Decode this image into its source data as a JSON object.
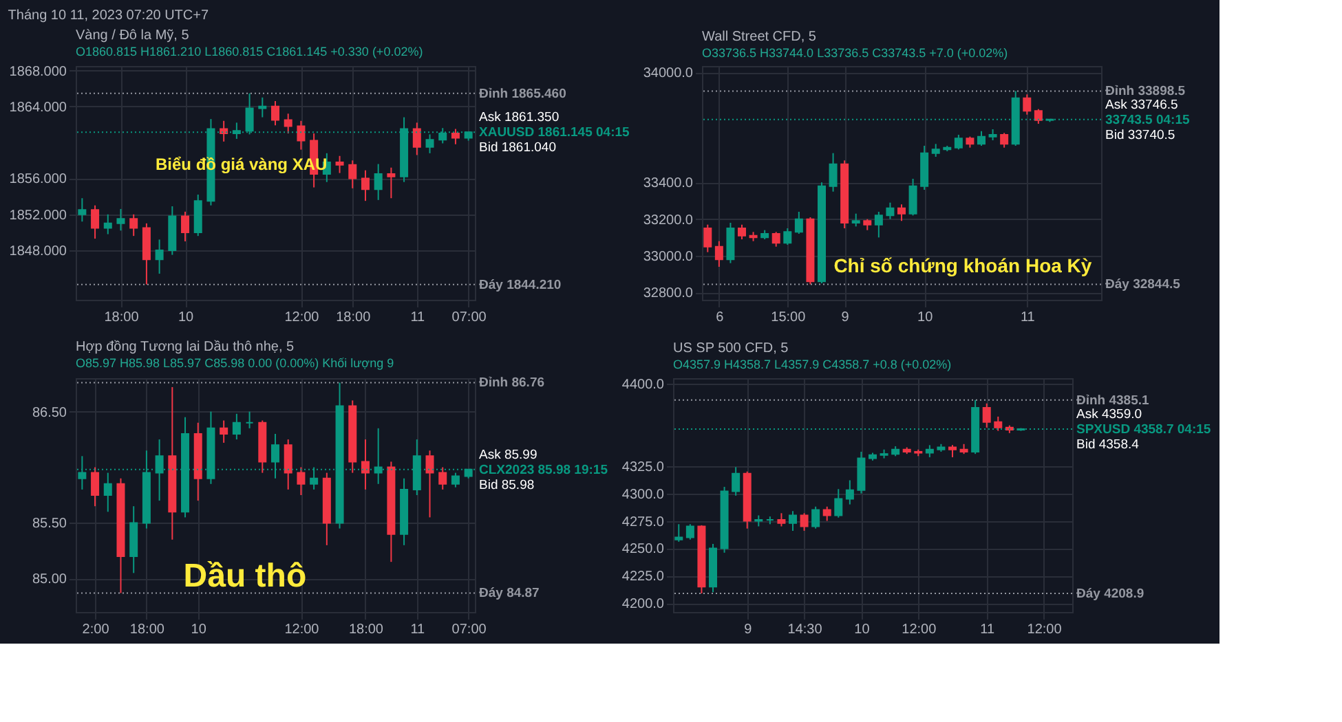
{
  "chart_data": [
    {
      "type": "other",
      "title": "Tháng 10 11, 2023 07:20 UTC+7"
    },
    {
      "type": "candlestick",
      "title": "Vàng / Đô la Mỹ, 5",
      "subtitle": "O1860.815  H1861.210  L1860.815  C1861.145  +0.330 (+0.02%)",
      "categories": [
        null,
        null,
        null,
        "18:00",
        null,
        null,
        null,
        null,
        "10",
        null,
        null,
        null,
        null,
        null,
        null,
        null,
        null,
        "12:00",
        null,
        null,
        null,
        "18:00",
        null,
        null,
        null,
        null,
        "11",
        null,
        null,
        null,
        "07:00"
      ],
      "ohlc": [
        [
          1852.0,
          1853.8,
          1851.2,
          1852.5
        ],
        [
          1852.5,
          1853.0,
          1849.3,
          1850.5
        ],
        [
          1850.5,
          1852.0,
          1849.8,
          1851.0
        ],
        [
          1851.0,
          1852.6,
          1850.2,
          1851.5
        ],
        [
          1851.5,
          1852.0,
          1849.6,
          1850.5
        ],
        [
          1850.5,
          1851.0,
          1844.21,
          1847.0
        ],
        [
          1847.0,
          1849.2,
          1845.4,
          1848.0
        ],
        [
          1848.0,
          1852.9,
          1847.5,
          1851.8
        ],
        [
          1851.8,
          1852.3,
          1849.0,
          1850.0
        ],
        [
          1850.0,
          1854.2,
          1849.6,
          1853.5
        ],
        [
          1853.5,
          1862.6,
          1853.0,
          1861.5
        ],
        [
          1861.5,
          1862.4,
          1860.1,
          1861.0
        ],
        [
          1861.0,
          1862.2,
          1860.4,
          1861.3
        ],
        [
          1861.3,
          1865.46,
          1860.9,
          1863.8
        ],
        [
          1863.8,
          1865.0,
          1862.8,
          1864.0
        ],
        [
          1864.0,
          1864.6,
          1861.9,
          1862.5
        ],
        [
          1862.5,
          1863.2,
          1861.0,
          1861.8
        ],
        [
          1861.8,
          1862.4,
          1859.2,
          1860.2
        ],
        [
          1860.2,
          1861.0,
          1855.0,
          1856.5
        ],
        [
          1856.5,
          1858.8,
          1855.6,
          1857.8
        ],
        [
          1857.8,
          1858.5,
          1856.6,
          1857.5
        ],
        [
          1857.5,
          1858.0,
          1854.9,
          1856.0
        ],
        [
          1856.0,
          1856.9,
          1853.5,
          1854.8
        ],
        [
          1854.8,
          1857.6,
          1853.6,
          1856.5
        ],
        [
          1856.5,
          1857.2,
          1853.8,
          1856.2
        ],
        [
          1856.2,
          1862.8,
          1855.6,
          1861.5
        ],
        [
          1861.5,
          1862.2,
          1858.6,
          1859.5
        ],
        [
          1859.5,
          1860.9,
          1858.8,
          1860.3
        ],
        [
          1860.3,
          1861.6,
          1859.9,
          1861.0
        ],
        [
          1861.0,
          1861.5,
          1859.8,
          1860.5
        ],
        [
          1860.5,
          1861.21,
          1860.2,
          1861.145
        ]
      ],
      "colors": [
        "#089981",
        "#f23645",
        "#089981",
        "#089981",
        "#f23645",
        "#f23645",
        "#089981",
        "#089981",
        "#f23645",
        "#089981",
        "#089981",
        "#f23645",
        "#089981",
        "#089981",
        "#089981",
        "#f23645",
        "#f23645",
        "#f23645",
        "#f23645",
        "#089981",
        "#f23645",
        "#f23645",
        "#f23645",
        "#089981",
        "#f23645",
        "#089981",
        "#f23645",
        "#089981",
        "#089981",
        "#f23645",
        "#089981"
      ],
      "ylim": [
        1842.5,
        1868.5
      ],
      "yticks": [
        {
          "value": 1848,
          "label": "1848.000"
        },
        {
          "value": 1852,
          "label": "1852.000"
        },
        {
          "value": 1856,
          "label": "1856.000"
        },
        {
          "value": 1864,
          "label": "1864.000"
        },
        {
          "value": 1868,
          "label": "1868.000"
        }
      ],
      "grid": true,
      "legend": false,
      "ref_lines": [
        {
          "axis": "y",
          "value": 1865.46,
          "label": "Đỉnh 1865.460",
          "color": "#9598a1",
          "line_style": "dotted"
        },
        {
          "axis": "y",
          "value": 1861.145,
          "label": "XAUUSD 1861.145 04:15",
          "color": "#089981",
          "line_style": "dotted"
        },
        {
          "axis": "y",
          "value": 1844.21,
          "label": "Đáy 1844.210",
          "color": "#9598a1",
          "line_style": "dotted"
        }
      ],
      "annotations": [
        "Biểu đồ giá vàng XAU",
        "Ask 1861.350",
        "Bid 1861.040"
      ]
    },
    {
      "type": "candlestick",
      "title": "Wall Street CFD, 5",
      "subtitle": "O33736.5  H33744.0  L33736.5  C33743.5  +7.0 (+0.02%)",
      "categories": [
        null,
        "6",
        null,
        null,
        null,
        null,
        null,
        "15:00",
        null,
        null,
        null,
        null,
        "9",
        null,
        null,
        null,
        null,
        null,
        null,
        "10",
        null,
        null,
        null,
        null,
        null,
        null,
        null,
        null,
        "11",
        null,
        null,
        null,
        null,
        null,
        null
      ],
      "ohlc": [
        [
          33150,
          33170,
          33020,
          33050
        ],
        [
          33050,
          33080,
          32940,
          32980
        ],
        [
          32980,
          33180,
          32960,
          33150
        ],
        [
          33150,
          33170,
          33090,
          33110
        ],
        [
          33110,
          33130,
          33080,
          33100
        ],
        [
          33100,
          33140,
          33090,
          33120
        ],
        [
          33120,
          33130,
          33050,
          33070
        ],
        [
          33070,
          33150,
          33060,
          33130
        ],
        [
          33130,
          33240,
          33120,
          33200
        ],
        [
          33200,
          33210,
          32844.5,
          32860
        ],
        [
          32860,
          33400,
          32850,
          33380
        ],
        [
          33380,
          33560,
          33350,
          33500
        ],
        [
          33500,
          33520,
          33150,
          33180
        ],
        [
          33180,
          33230,
          33160,
          33190
        ],
        [
          33190,
          33200,
          33140,
          33170
        ],
        [
          33170,
          33240,
          33100,
          33220
        ],
        [
          33220,
          33290,
          33200,
          33260
        ],
        [
          33260,
          33280,
          33190,
          33230
        ],
        [
          33230,
          33420,
          33220,
          33380
        ],
        [
          33380,
          33600,
          33360,
          33560
        ],
        [
          33560,
          33610,
          33540,
          33580
        ],
        [
          33580,
          33600,
          33570,
          33590
        ],
        [
          33590,
          33660,
          33580,
          33640
        ],
        [
          33640,
          33650,
          33590,
          33610
        ],
        [
          33610,
          33680,
          33600,
          33650
        ],
        [
          33650,
          33690,
          33630,
          33660
        ],
        [
          33660,
          33670,
          33590,
          33610
        ],
        [
          33610,
          33898.5,
          33600,
          33860
        ],
        [
          33860,
          33880,
          33770,
          33790
        ],
        [
          33790,
          33800,
          33720,
          33740
        ],
        [
          33740,
          33744,
          33730,
          33743.5
        ],
        null,
        null,
        null,
        null
      ],
      "colors": [
        "#f23645",
        "#f23645",
        "#089981",
        "#f23645",
        "#f23645",
        "#089981",
        "#f23645",
        "#089981",
        "#089981",
        "#f23645",
        "#089981",
        "#089981",
        "#f23645",
        "#089981",
        "#f23645",
        "#089981",
        "#089981",
        "#f23645",
        "#089981",
        "#089981",
        "#089981",
        "#089981",
        "#089981",
        "#f23645",
        "#089981",
        "#089981",
        "#f23645",
        "#089981",
        "#f23645",
        "#f23645",
        "#089981",
        null,
        null,
        null,
        null
      ],
      "ylim": [
        32760,
        34035
      ],
      "yticks": [
        {
          "value": 32800,
          "label": "32800.0"
        },
        {
          "value": 33000,
          "label": "33000.0"
        },
        {
          "value": 33200,
          "label": "33200.0"
        },
        {
          "value": 33400,
          "label": "33400.0"
        },
        {
          "value": 34000,
          "label": "34000.0"
        }
      ],
      "grid": true,
      "legend": false,
      "ref_lines": [
        {
          "axis": "y",
          "value": 33898.5,
          "label": "Đỉnh 33898.5",
          "color": "#9598a1",
          "line_style": "dotted"
        },
        {
          "axis": "y",
          "value": 33743.5,
          "label": "33743.5 04:15",
          "color": "#089981",
          "line_style": "dotted"
        },
        {
          "axis": "y",
          "value": 32844.5,
          "label": "Đáy 32844.5",
          "color": "#9598a1",
          "line_style": "dotted"
        }
      ],
      "annotations": [
        "Chỉ số chứng khoán Hoa Kỳ",
        "Ask 33746.5",
        "Bid 33740.5"
      ]
    },
    {
      "type": "candlestick",
      "title": "Hợp đồng Tương lai Dầu thô nhẹ, 5",
      "subtitle": "O85.97  H85.98  L85.97  C85.98  0.00 (0.00%)  Khối lượng 9",
      "categories": [
        null,
        "2:00",
        null,
        null,
        null,
        "18:00",
        null,
        null,
        null,
        "10",
        null,
        null,
        null,
        null,
        null,
        null,
        null,
        "12:00",
        null,
        null,
        null,
        null,
        "18:00",
        null,
        null,
        null,
        "11",
        null,
        null,
        null,
        "07:00"
      ],
      "ohlc": [
        [
          85.9,
          86.1,
          85.8,
          85.95
        ],
        [
          85.95,
          86.0,
          85.65,
          85.75
        ],
        [
          85.75,
          85.95,
          85.6,
          85.85
        ],
        [
          85.85,
          85.9,
          84.87,
          85.2
        ],
        [
          85.2,
          85.65,
          85.05,
          85.5
        ],
        [
          85.5,
          86.15,
          85.45,
          85.95
        ],
        [
          85.95,
          86.25,
          85.7,
          86.1
        ],
        [
          86.1,
          86.72,
          85.35,
          85.6
        ],
        [
          85.6,
          86.45,
          85.55,
          86.3
        ],
        [
          86.3,
          86.4,
          85.7,
          85.9
        ],
        [
          85.9,
          86.5,
          85.85,
          86.35
        ],
        [
          86.35,
          86.42,
          86.22,
          86.3
        ],
        [
          86.3,
          86.48,
          86.25,
          86.4
        ],
        [
          86.4,
          86.5,
          86.35,
          86.4
        ],
        [
          86.4,
          86.42,
          85.95,
          86.05
        ],
        [
          86.05,
          86.3,
          85.9,
          86.2
        ],
        [
          86.2,
          86.25,
          85.8,
          85.95
        ],
        [
          85.95,
          86.0,
          85.75,
          85.85
        ],
        [
          85.85,
          86.0,
          85.8,
          85.9
        ],
        [
          85.9,
          85.95,
          85.3,
          85.5
        ],
        [
          85.5,
          86.76,
          85.45,
          86.55
        ],
        [
          86.55,
          86.6,
          85.95,
          86.05
        ],
        [
          86.05,
          86.25,
          85.8,
          85.95
        ],
        [
          85.95,
          86.35,
          85.85,
          86.0
        ],
        [
          86.0,
          86.05,
          85.15,
          85.4
        ],
        [
          85.4,
          85.9,
          85.3,
          85.8
        ],
        [
          85.8,
          86.25,
          85.75,
          86.1
        ],
        [
          86.1,
          86.15,
          85.55,
          85.95
        ],
        [
          85.95,
          86.0,
          85.8,
          85.85
        ],
        [
          85.85,
          85.95,
          85.82,
          85.92
        ],
        [
          85.92,
          85.98,
          85.9,
          85.98
        ]
      ],
      "colors": [
        "#089981",
        "#f23645",
        "#089981",
        "#f23645",
        "#089981",
        "#089981",
        "#089981",
        "#f23645",
        "#089981",
        "#f23645",
        "#089981",
        "#f23645",
        "#089981",
        "#089981",
        "#f23645",
        "#089981",
        "#f23645",
        "#f23645",
        "#089981",
        "#f23645",
        "#089981",
        "#f23645",
        "#f23645",
        "#089981",
        "#f23645",
        "#089981",
        "#089981",
        "#f23645",
        "#f23645",
        "#089981",
        "#089981"
      ],
      "ylim": [
        84.7,
        86.8
      ],
      "yticks": [
        {
          "value": 85,
          "label": "85.00"
        },
        {
          "value": 85.5,
          "label": "85.50"
        },
        {
          "value": 86.5,
          "label": "86.50"
        }
      ],
      "grid": true,
      "legend": false,
      "ref_lines": [
        {
          "axis": "y",
          "value": 86.76,
          "label": "Đỉnh 86.76",
          "color": "#9598a1",
          "line_style": "dotted"
        },
        {
          "axis": "y",
          "value": 85.98,
          "label": "CLX2023 85.98 19:15",
          "color": "#089981",
          "line_style": "dotted"
        },
        {
          "axis": "y",
          "value": 84.87,
          "label": "Đáy 84.87",
          "color": "#9598a1",
          "line_style": "dotted"
        }
      ],
      "annotations": [
        "Dầu thô",
        "Ask 85.99",
        "Bid 85.98"
      ]
    },
    {
      "type": "candlestick",
      "title": "US SP 500 CFD, 5",
      "subtitle": "O4357.9  H4358.7  L4357.9  C4358.7  +0.8 (+0.02%)",
      "categories": [
        null,
        null,
        null,
        null,
        null,
        null,
        "9",
        null,
        null,
        null,
        null,
        "14:30",
        null,
        null,
        null,
        null,
        "10",
        null,
        null,
        null,
        null,
        "12:00",
        null,
        null,
        null,
        null,
        null,
        "11",
        null,
        null,
        null,
        null,
        "12:00",
        null,
        null
      ],
      "ohlc": [
        [
          4258,
          4272,
          4256,
          4260
        ],
        [
          4260,
          4272,
          4258,
          4270
        ],
        [
          4270,
          4271,
          4208.9,
          4215
        ],
        [
          4215,
          4254,
          4210,
          4250
        ],
        [
          4250,
          4306,
          4246,
          4302
        ],
        [
          4302,
          4324,
          4298,
          4318
        ],
        [
          4318,
          4320,
          4268,
          4275
        ],
        [
          4275,
          4280,
          4270,
          4276
        ],
        [
          4276,
          4279,
          4272,
          4276
        ],
        [
          4276,
          4282,
          4270,
          4273
        ],
        [
          4273,
          4284,
          4266,
          4280
        ],
        [
          4280,
          4282,
          4266,
          4270
        ],
        [
          4270,
          4288,
          4268,
          4285
        ],
        [
          4285,
          4288,
          4275,
          4280
        ],
        [
          4280,
          4304,
          4278,
          4295
        ],
        [
          4295,
          4312,
          4290,
          4303
        ],
        [
          4303,
          4338,
          4300,
          4332
        ],
        [
          4332,
          4337,
          4330,
          4335
        ],
        [
          4335,
          4340,
          4332,
          4336
        ],
        [
          4336,
          4343,
          4334,
          4340
        ],
        [
          4340,
          4342,
          4336,
          4338
        ],
        [
          4338,
          4340,
          4334,
          4337
        ],
        [
          4337,
          4344,
          4333,
          4340
        ],
        [
          4340,
          4345,
          4338,
          4342
        ],
        [
          4342,
          4344,
          4333,
          4340
        ],
        [
          4340,
          4345,
          4336,
          4338
        ],
        [
          4338,
          4385.1,
          4336,
          4378
        ],
        [
          4378,
          4382,
          4360,
          4365
        ],
        [
          4365,
          4370,
          4357,
          4360
        ],
        [
          4360,
          4362,
          4355,
          4358
        ],
        [
          4358,
          4359.5,
          4357,
          4358.7
        ],
        null,
        null,
        null,
        null
      ],
      "colors": [
        "#089981",
        "#089981",
        "#f23645",
        "#089981",
        "#089981",
        "#089981",
        "#f23645",
        "#089981",
        "#089981",
        "#f23645",
        "#089981",
        "#f23645",
        "#089981",
        "#f23645",
        "#089981",
        "#089981",
        "#089981",
        "#089981",
        "#089981",
        "#089981",
        "#f23645",
        "#f23645",
        "#089981",
        "#089981",
        "#f23645",
        "#f23645",
        "#089981",
        "#f23645",
        "#f23645",
        "#f23645",
        "#089981",
        null,
        null,
        null,
        null
      ],
      "ylim": [
        4192,
        4405
      ],
      "yticks": [
        {
          "value": 4200,
          "label": "4200.0"
        },
        {
          "value": 4225,
          "label": "4225.0"
        },
        {
          "value": 4250,
          "label": "4250.0"
        },
        {
          "value": 4275,
          "label": "4275.0"
        },
        {
          "value": 4300,
          "label": "4300.0"
        },
        {
          "value": 4325,
          "label": "4325.0"
        },
        {
          "value": 4400,
          "label": "4400.0"
        }
      ],
      "grid": true,
      "legend": false,
      "ref_lines": [
        {
          "axis": "y",
          "value": 4385.1,
          "label": "Đỉnh 4385.1",
          "color": "#9598a1",
          "line_style": "dotted"
        },
        {
          "axis": "y",
          "value": 4358.7,
          "label": "SPXUSD 4358.7 04:15",
          "color": "#089981",
          "line_style": "dotted"
        },
        {
          "axis": "y",
          "value": 4208.9,
          "label": "Đáy 4208.9",
          "color": "#9598a1",
          "line_style": "dotted"
        }
      ],
      "annotations": [
        "Ask 4359.0",
        "Bid 4358.4"
      ]
    }
  ]
}
